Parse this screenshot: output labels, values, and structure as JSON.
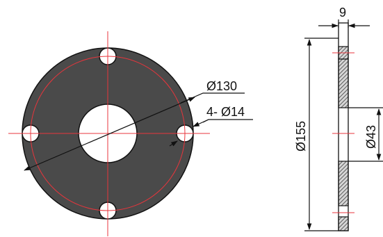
{
  "drawing": {
    "dimensions": {
      "bolt_circle": "Ø130",
      "bolt_holes": "4- Ø14",
      "center_hole": "Ø43",
      "outer_diameter": "Ø155",
      "thickness": "9"
    },
    "colors": {
      "part_fill": "#4a4a4a",
      "part_outline": "#111111",
      "centerline": "#e8353c",
      "dimension_line": "#111111",
      "hatch": "#5a5a5a"
    }
  }
}
